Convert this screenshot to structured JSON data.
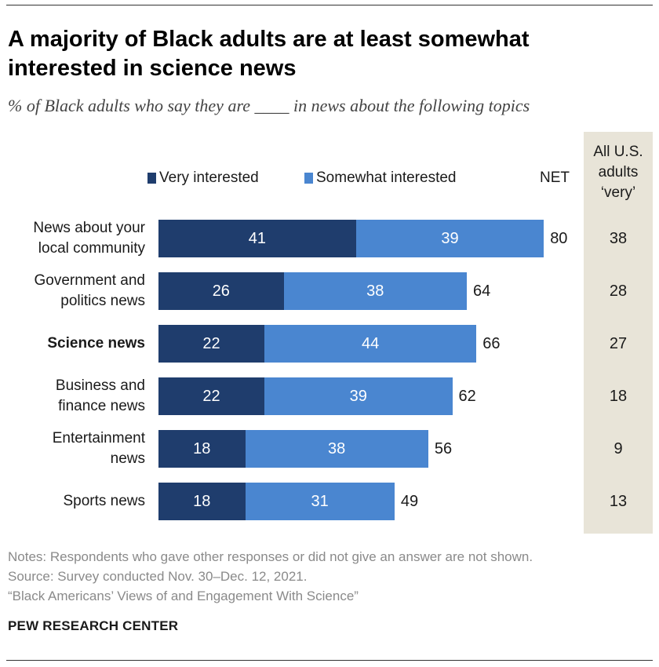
{
  "title": "A majority of Black adults are at least somewhat interested in science news",
  "subtitle": "% of Black adults who say they are ____ in news about the following topics",
  "colors": {
    "very": "#1f3d6d",
    "somewhat": "#4a86d0",
    "shade": "#e8e4d8"
  },
  "chart_data": {
    "type": "bar",
    "orientation": "horizontal",
    "stacked": true,
    "categories": [
      "News about your local community",
      "Government and politics news",
      "Science news",
      "Business and finance news",
      "Entertainment news",
      "Sports news"
    ],
    "category_display": [
      "News about your\nlocal community",
      "Government and\npolitics news",
      "Science news",
      "Business and\nfinance news",
      "Entertainment\nnews",
      "Sports news"
    ],
    "highlight": [
      false,
      false,
      true,
      false,
      false,
      false
    ],
    "series": [
      {
        "name": "Very interested",
        "values": [
          41,
          26,
          22,
          22,
          18,
          18
        ]
      },
      {
        "name": "Somewhat interested",
        "values": [
          39,
          38,
          44,
          39,
          38,
          31
        ]
      }
    ],
    "net_label": "NET",
    "net": [
      80,
      64,
      66,
      62,
      56,
      49
    ],
    "all_us_label": "All U.S.\nadults\n‘very’",
    "all_us_very": [
      38,
      28,
      27,
      18,
      9,
      13
    ],
    "legend_position": "top",
    "xlim": [
      0,
      100
    ]
  },
  "notes": [
    "Notes: Respondents who gave other responses or did not give an answer are not shown.",
    "Source: Survey conducted Nov. 30–Dec. 12, 2021.",
    "“Black Americans’ Views of and Engagement With Science”"
  ],
  "brand": "PEW RESEARCH CENTER"
}
